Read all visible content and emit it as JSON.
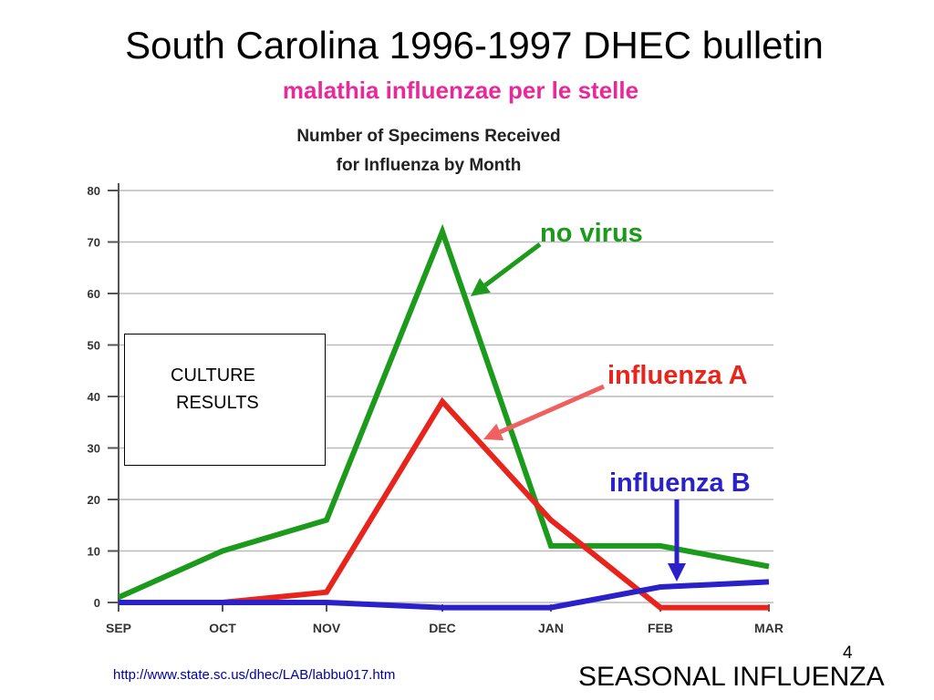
{
  "slide": {
    "title": "South Carolina 1996-1997 DHEC bulletin",
    "subtitle": "malathia influenzae per le stelle",
    "slide_number": "4",
    "source_url": "http://www.state.sc.us/dhec/LAB/labbu017.htm",
    "footer_title": "SEASONAL INFLUENZA"
  },
  "colors": {
    "subtitle": "#e8299a",
    "no_virus": "#1b9a1b",
    "influenza_a": "#e8251c",
    "influenza_b": "#2a21c9",
    "a_arrow": "#f06060",
    "grid": "#bbbbbb",
    "axis": "#555555"
  },
  "culture_box": {
    "line1": "CULTURE",
    "line2": "RESULTS"
  },
  "annotations": {
    "no_virus": "no virus",
    "influenza_a": "influenza A",
    "influenza_b": "influenza B"
  },
  "chart_data": {
    "type": "line",
    "title": "Number of Specimens Received",
    "subtitle": "for Influenza by Month",
    "categories": [
      "SEP",
      "OCT",
      "NOV",
      "DEC",
      "JAN",
      "FEB",
      "MAR"
    ],
    "ylim": [
      0,
      80
    ],
    "yticks": [
      "0",
      "10",
      "20",
      "30",
      "40",
      "50",
      "60",
      "70",
      "80"
    ],
    "grid": true,
    "legend": "none",
    "series": [
      {
        "key": "no_virus",
        "values": [
          1,
          10,
          16,
          72,
          11,
          11,
          7
        ]
      },
      {
        "key": "influenza_a",
        "values": [
          0,
          0,
          2,
          39,
          16,
          -1,
          -1
        ]
      },
      {
        "key": "influenza_b",
        "values": [
          0,
          0,
          0,
          -1,
          -1,
          3,
          4
        ]
      }
    ]
  }
}
